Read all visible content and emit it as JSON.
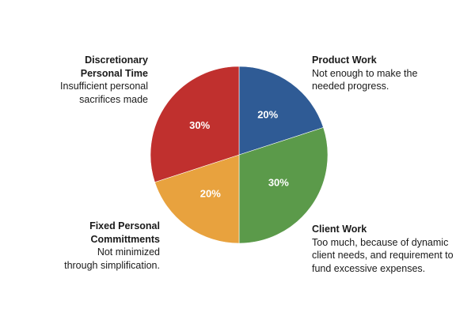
{
  "chart_data": {
    "type": "pie",
    "slices": [
      {
        "value": 20,
        "label": "20%",
        "category": "Product Work",
        "description": [
          "Not enough to make the",
          "needed progress."
        ],
        "color": "#2f5b95"
      },
      {
        "value": 30,
        "label": "30%",
        "category": "Client Work",
        "description": [
          "Too much, because of dynamic",
          "client needs, and requirement to",
          "fund excessive expenses."
        ],
        "color": "#5b9a4a"
      },
      {
        "value": 20,
        "label": "20%",
        "category": "Fixed Personal Committments",
        "category_lines": [
          "Fixed Personal",
          "Committments"
        ],
        "description": [
          "Not minimized",
          "through simplification."
        ],
        "color": "#e8a23e"
      },
      {
        "value": 30,
        "label": "30%",
        "category": "Discretionary Personal Time",
        "category_lines": [
          "Discretionary",
          "Personal Time"
        ],
        "description": [
          "Insufficient personal",
          "sacrifices made"
        ],
        "color": "#c0302e"
      }
    ]
  }
}
